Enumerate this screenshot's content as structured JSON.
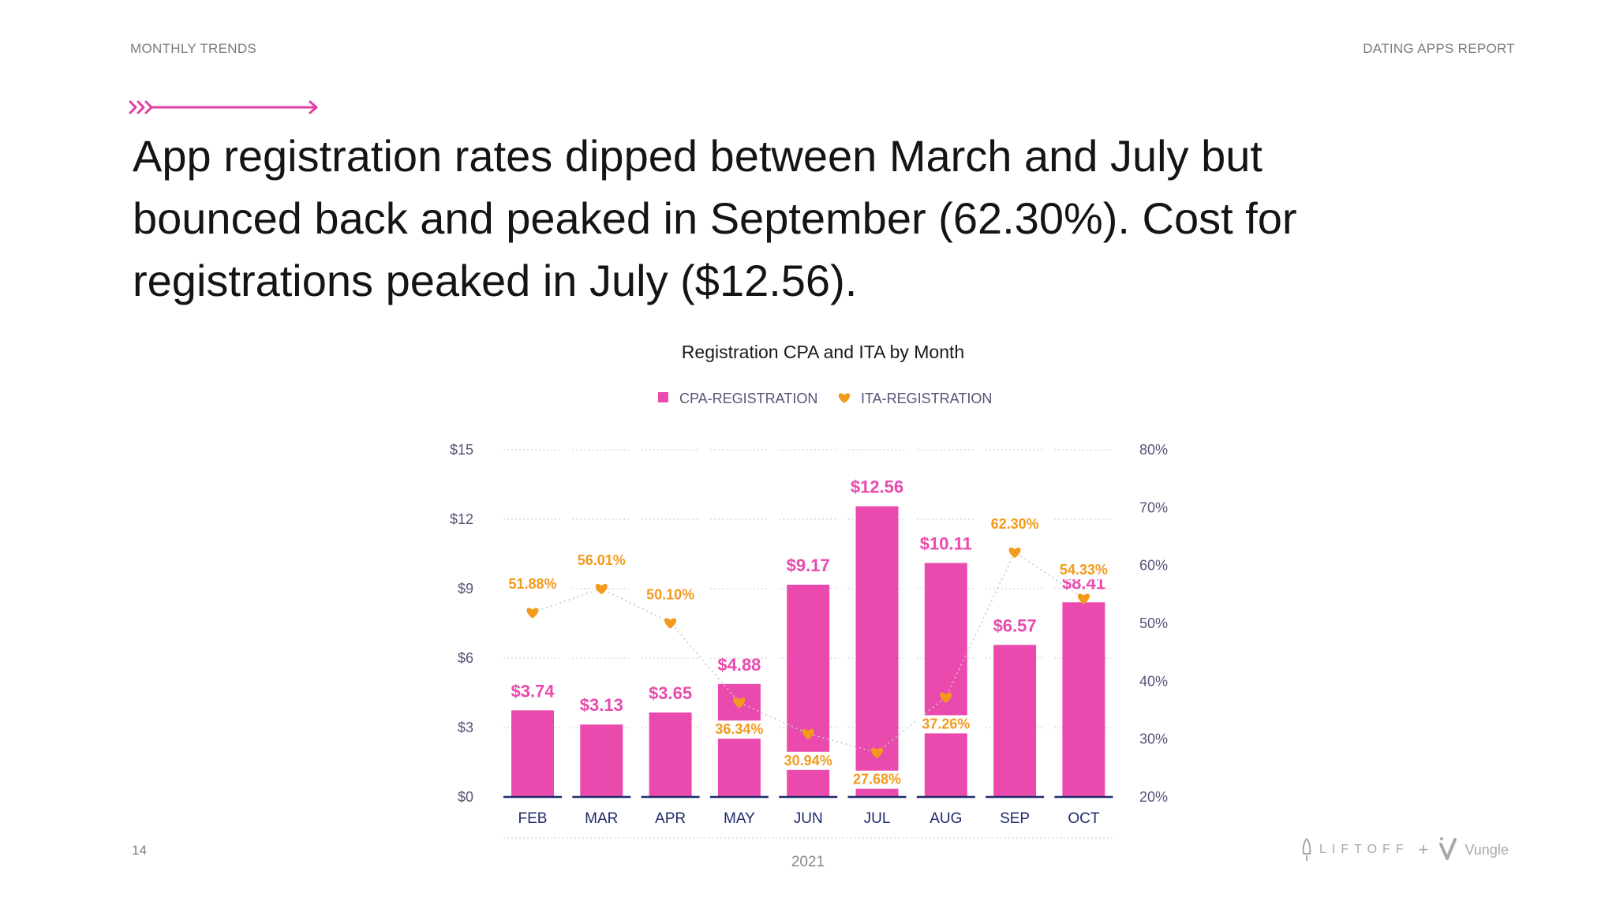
{
  "header": {
    "section": "MONTHLY TRENDS",
    "report": "DATING APPS REPORT"
  },
  "headline": "App registration rates dipped between March and July but bounced back and peaked in September (62.30%). Cost for registrations peaked in July ($12.56).",
  "footer": {
    "page_number": "14",
    "brand_left": "LIFTOFF",
    "brand_plus": "+",
    "brand_right": "Vungle"
  },
  "colors": {
    "cpa": "#ea4aad",
    "ita": "#f39a1c",
    "axis_text": "#555577",
    "month_text": "#1f2a6b",
    "accent": "#e23fa3"
  },
  "chart_data": {
    "type": "bar",
    "title": "Registration CPA and ITA by Month",
    "xlabel": "2021",
    "categories": [
      "FEB",
      "MAR",
      "APR",
      "MAY",
      "JUN",
      "JUL",
      "AUG",
      "SEP",
      "OCT"
    ],
    "left_axis": {
      "ticks": [
        "$0",
        "$3",
        "$6",
        "$9",
        "$12",
        "$15"
      ],
      "ylim": [
        0,
        15
      ]
    },
    "right_axis": {
      "ticks": [
        "20%",
        "30%",
        "40%",
        "50%",
        "60%",
        "70%",
        "80%"
      ],
      "ylim": [
        20,
        80
      ]
    },
    "legend": "top-center",
    "grid": "dotted",
    "series": [
      {
        "name": "CPA-REGISTRATION",
        "type": "bar",
        "axis": "left",
        "values": [
          3.74,
          3.13,
          3.65,
          4.88,
          9.17,
          12.56,
          10.11,
          6.57,
          8.41
        ],
        "labels": [
          "$3.74",
          "$3.13",
          "$3.65",
          "$4.88",
          "$9.17",
          "$12.56",
          "$10.11",
          "$6.57",
          "$8.41"
        ]
      },
      {
        "name": "ITA-REGISTRATION",
        "type": "line",
        "axis": "right",
        "marker": "heart",
        "values": [
          51.88,
          56.01,
          50.1,
          36.34,
          30.94,
          27.68,
          37.26,
          62.3,
          54.33
        ],
        "labels": [
          "51.88%",
          "56.01%",
          "50.10%",
          "36.34%",
          "30.94%",
          "27.68%",
          "37.26%",
          "62.30%",
          "54.33%"
        ]
      }
    ]
  }
}
